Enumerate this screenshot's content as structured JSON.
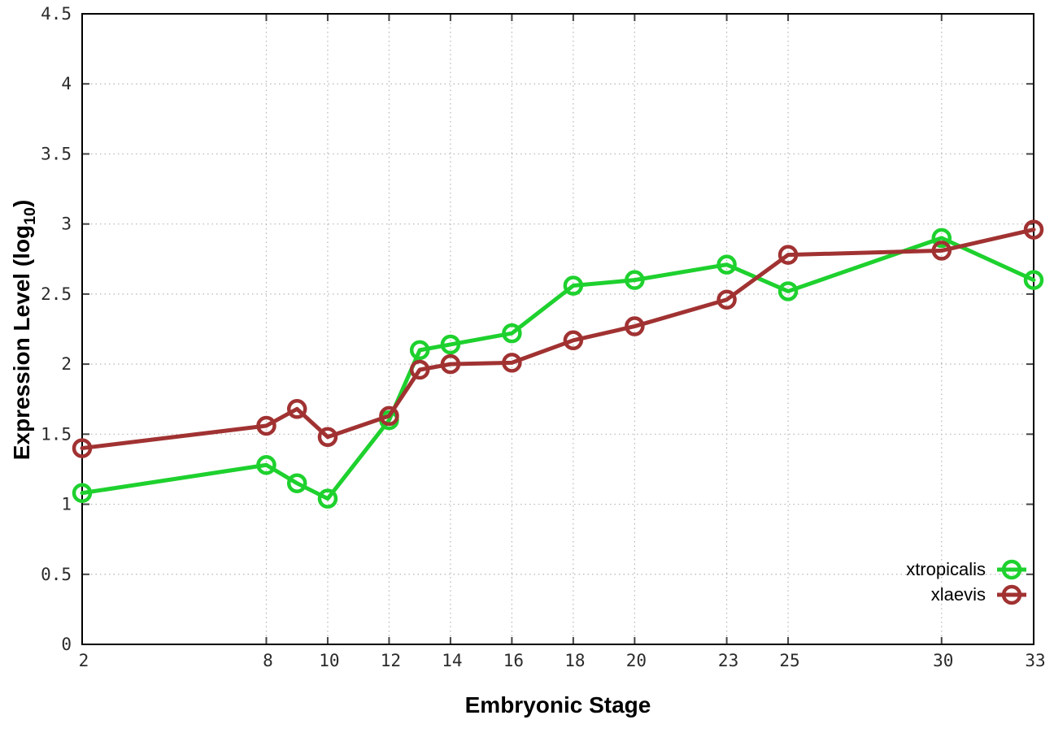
{
  "chart_data": {
    "type": "line",
    "title": "",
    "xlabel": "Embryonic Stage",
    "ylabel": "Expression Level (log10)",
    "ylabel_parts": {
      "prefix": "Expression Level (log",
      "sub": "10",
      "suffix": ")"
    },
    "x_range": [
      2,
      33
    ],
    "y_range": [
      0,
      4.5
    ],
    "grid": true,
    "x_ticks": {
      "values": [
        2,
        8,
        10,
        12,
        14,
        16,
        18,
        20,
        23,
        25,
        30,
        33
      ],
      "labels": [
        "2",
        "8",
        "10",
        "12",
        "14",
        "16",
        "18",
        "20",
        "23",
        "25",
        "30",
        "33"
      ]
    },
    "y_ticks": {
      "values": [
        0,
        0.5,
        1,
        1.5,
        2,
        2.5,
        3,
        3.5,
        4,
        4.5
      ],
      "labels": [
        "0",
        "0.5",
        "1",
        "1.5",
        "2",
        "2.5",
        "3",
        "3.5",
        "4",
        "4.5"
      ]
    },
    "x": [
      2,
      8,
      9,
      10,
      12,
      13,
      14,
      16,
      18,
      20,
      23,
      25,
      30,
      33
    ],
    "series": [
      {
        "name": "xtropicalis",
        "color": "#1ed12e",
        "values": [
          1.08,
          1.28,
          1.15,
          1.04,
          1.6,
          2.1,
          2.14,
          2.22,
          2.56,
          2.6,
          2.71,
          2.52,
          2.9,
          2.6
        ]
      },
      {
        "name": "xlaevis",
        "color": "#a13232",
        "values": [
          1.4,
          1.56,
          1.68,
          1.48,
          1.63,
          1.96,
          2.0,
          2.01,
          2.17,
          2.27,
          2.46,
          2.78,
          2.81,
          2.96
        ]
      }
    ],
    "marker": "open-circle",
    "legend": {
      "position": "bottom-right"
    },
    "style_colors": {
      "border": "#000000",
      "grid": "#b5b5b5",
      "tick": "#444444",
      "tick_label": "#2b2b2b",
      "legend_text": "#000000"
    }
  }
}
